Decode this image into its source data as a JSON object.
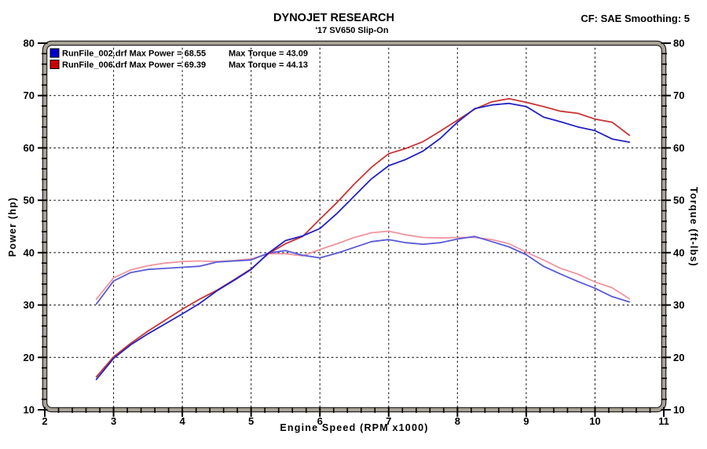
{
  "header": {
    "title": "DYNOJET RESEARCH",
    "subtitle": "'17 SV650 Slip-On",
    "correction_info": "CF: SAE  Smoothing: 5"
  },
  "legend": {
    "rows": [
      {
        "color": "#0000cc",
        "file_and_power": "RunFile_002.drf Max Power = 68.55",
        "torque": "Max Torque = 43.09"
      },
      {
        "color": "#cc0000",
        "file_and_power": "RunFile_006.drf Max Power = 69.39",
        "torque": "Max Torque = 44.13"
      }
    ]
  },
  "chart_data": {
    "type": "line",
    "title": "DYNOJET RESEARCH",
    "subtitle": "'17 SV650 Slip-On",
    "xlabel": "Engine Speed (RPM x1000)",
    "xlim": [
      2,
      11
    ],
    "x_ticks": [
      2,
      3,
      4,
      5,
      6,
      7,
      8,
      9,
      10,
      11
    ],
    "x_minor_step": 0.2,
    "grid": true,
    "legend_position": "top-left",
    "frame_color": "#a8a295",
    "grid_color": "#1a1a1a",
    "left_axis": {
      "label": "Power (hp)",
      "lim": [
        10,
        80
      ],
      "ticks": [
        10,
        20,
        30,
        40,
        50,
        60,
        70,
        80
      ],
      "minor_step": 2
    },
    "right_axis": {
      "label": "Torque (ft-lbs)",
      "lim": [
        10,
        80
      ],
      "ticks": [
        10,
        20,
        30,
        40,
        50,
        60,
        70,
        80
      ],
      "minor_step": 2
    },
    "x": [
      2.75,
      3.0,
      3.25,
      3.5,
      3.75,
      4.0,
      4.25,
      4.5,
      4.75,
      5.0,
      5.25,
      5.5,
      5.75,
      6.0,
      6.25,
      6.5,
      6.75,
      7.0,
      7.25,
      7.5,
      7.75,
      8.0,
      8.25,
      8.5,
      8.75,
      9.0,
      9.25,
      9.5,
      9.75,
      10.0,
      10.25,
      10.5
    ],
    "series": [
      {
        "name": "RunFile_006.drf Torque (ft-lbs)",
        "axis": "right",
        "color": "#f0959f",
        "values": [
          31.1,
          35.2,
          36.7,
          37.5,
          38.0,
          38.3,
          38.4,
          38.3,
          38.5,
          38.8,
          39.8,
          39.8,
          39.4,
          40.6,
          41.7,
          42.9,
          43.8,
          44.1,
          43.4,
          42.9,
          42.8,
          42.9,
          42.9,
          42.5,
          41.7,
          40.1,
          38.6,
          37.0,
          35.9,
          34.4,
          33.3,
          31.2
        ]
      },
      {
        "name": "RunFile_002.drf Torque (ft-lbs)",
        "axis": "right",
        "color": "#5a5ad8",
        "values": [
          30.2,
          34.6,
          36.2,
          36.8,
          37.0,
          37.2,
          37.4,
          38.2,
          38.4,
          38.6,
          39.9,
          40.4,
          39.5,
          39.0,
          39.9,
          41.0,
          42.1,
          42.5,
          41.9,
          41.6,
          41.9,
          42.6,
          43.1,
          42.1,
          41.1,
          39.6,
          37.4,
          35.9,
          34.5,
          33.2,
          31.6,
          30.6
        ]
      },
      {
        "name": "RunFile_006.drf Power (hp)",
        "axis": "left",
        "color": "#c93434",
        "values": [
          16.3,
          20.1,
          22.7,
          25.0,
          27.1,
          29.2,
          31.1,
          32.8,
          34.8,
          36.9,
          39.8,
          41.7,
          43.1,
          46.4,
          49.6,
          53.1,
          56.3,
          58.9,
          59.9,
          61.2,
          63.2,
          65.3,
          67.4,
          68.8,
          69.4,
          68.7,
          67.9,
          67.0,
          66.6,
          65.5,
          64.9,
          62.4
        ]
      },
      {
        "name": "RunFile_002.drf Power (hp)",
        "axis": "left",
        "color": "#2121c4",
        "values": [
          15.8,
          19.8,
          22.4,
          24.5,
          26.4,
          28.3,
          30.3,
          32.7,
          34.7,
          36.8,
          39.9,
          42.3,
          43.2,
          44.6,
          47.5,
          50.8,
          54.1,
          56.6,
          57.8,
          59.4,
          61.8,
          64.9,
          67.5,
          68.2,
          68.5,
          67.9,
          65.9,
          65.0,
          64.0,
          63.3,
          61.7,
          61.1
        ]
      }
    ],
    "max_values": {
      "run_002": {
        "max_power": 68.55,
        "max_torque": 43.09
      },
      "run_006": {
        "max_power": 69.39,
        "max_torque": 44.13
      }
    }
  }
}
